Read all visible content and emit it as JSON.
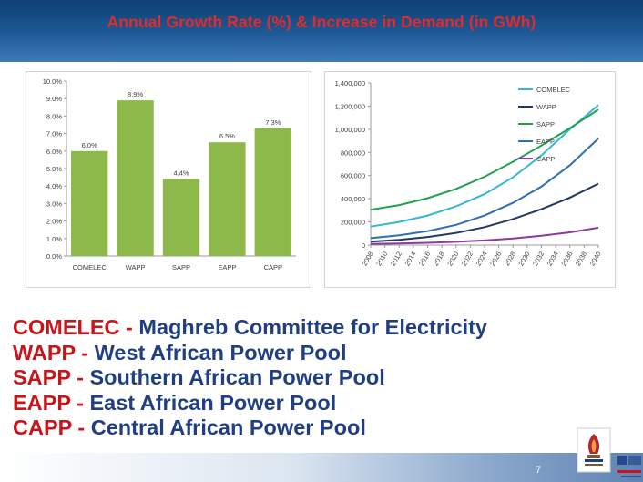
{
  "slide": {
    "title": "Annual Growth Rate (%) & Increase in Demand (in GWh)",
    "page_number": "7"
  },
  "legend": [
    {
      "abbr": "COMELEC",
      "sep": " - ",
      "full": "Maghreb Committee for Electricity"
    },
    {
      "abbr": "WAPP",
      "sep": " - ",
      "full": "West African Power Pool"
    },
    {
      "abbr": "SAPP",
      "sep": " - ",
      "full": "Southern African Power Pool"
    },
    {
      "abbr": "EAPP",
      "sep": " -  ",
      "full": "East African Power Pool"
    },
    {
      "abbr": "CAPP",
      "sep": " -  ",
      "full": "Central African Power Pool"
    }
  ],
  "colors": {
    "title": "#e52a2a",
    "abbr": "#c8151b",
    "legend_text": "#1f3f82",
    "bar": "#8db84a",
    "header": "#1e5a96"
  },
  "chart_data": [
    {
      "type": "bar",
      "categories": [
        "COMELEC",
        "WAPP",
        "SAPP",
        "EAPP",
        "CAPP"
      ],
      "values": [
        6.0,
        8.9,
        4.4,
        6.5,
        7.3
      ],
      "data_labels": [
        "6.0%",
        "8.9%",
        "4.4%",
        "6.5%",
        "7.3%"
      ],
      "ylim": [
        0,
        10
      ],
      "yticks": [
        "0.0%",
        "1.0%",
        "2.0%",
        "3.0%",
        "4.0%",
        "5.0%",
        "6.0%",
        "7.0%",
        "8.0%",
        "9.0%",
        "10.0%"
      ],
      "grid": false,
      "bar_color": "#8db84a"
    },
    {
      "type": "line",
      "x": [
        2008,
        2012,
        2016,
        2020,
        2024,
        2028,
        2032,
        2036,
        2040
      ],
      "xticks": [
        "2008",
        "2010",
        "2012",
        "2014",
        "2016",
        "2018",
        "2020",
        "2022",
        "2024",
        "2026",
        "2028",
        "2030",
        "2032",
        "2034",
        "2036",
        "2038",
        "2040"
      ],
      "ylim": [
        0,
        1400000
      ],
      "yticks": [
        "0",
        "200,000",
        "400,000",
        "600,000",
        "800,000",
        "1,000,000",
        "1,200,000",
        "1,400,000"
      ],
      "legend_position": "top-right",
      "grid": false,
      "series": [
        {
          "name": "COMELEC",
          "color": "#35b6d6",
          "values": [
            160000,
            200000,
            255000,
            335000,
            440000,
            585000,
            775000,
            1000000,
            1210000
          ]
        },
        {
          "name": "WAPP",
          "color": "#1f3864",
          "values": [
            30000,
            45000,
            70000,
            105000,
            155000,
            225000,
            310000,
            410000,
            530000
          ]
        },
        {
          "name": "SAPP",
          "color": "#21a050",
          "values": [
            305000,
            345000,
            405000,
            485000,
            590000,
            720000,
            860000,
            1010000,
            1170000
          ]
        },
        {
          "name": "EAPP",
          "color": "#2e6eb5",
          "values": [
            60000,
            85000,
            120000,
            175000,
            255000,
            365000,
            505000,
            690000,
            920000
          ]
        },
        {
          "name": "CAPP",
          "color": "#8e3a9d",
          "values": [
            10000,
            14000,
            20000,
            28000,
            40000,
            57000,
            80000,
            110000,
            150000
          ]
        }
      ]
    }
  ]
}
